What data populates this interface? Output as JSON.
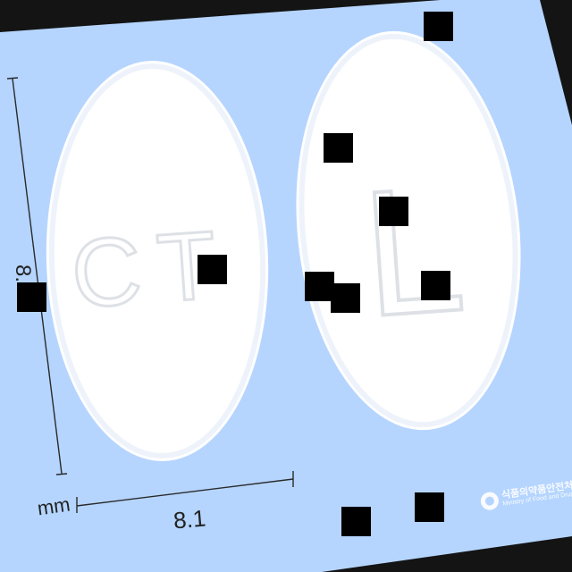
{
  "photo": {
    "background_color": "#b5d5ff",
    "frame_color": "#141414",
    "tablet_color": "#ffffff"
  },
  "tablets": [
    {
      "side": "front",
      "imprint": "CT"
    },
    {
      "side": "back",
      "imprint": "L"
    }
  ],
  "dimensions": {
    "height_label": "8.",
    "width_label": "8.1",
    "unit": "mm"
  },
  "watermark": {
    "korean": "식품의약품안전처",
    "english": "Ministry of Food and Drug S"
  },
  "redaction_color": "#000000"
}
